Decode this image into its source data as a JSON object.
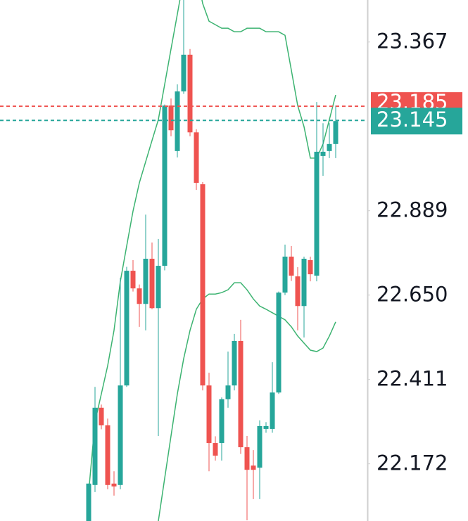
{
  "chart_data": {
    "type": "candlestick",
    "ylim": [
      22.01,
      23.486
    ],
    "yticks": [
      22.172,
      22.411,
      {
        "value": 22.65,
        "label": "22.650"
      },
      22.889,
      23.367
    ],
    "up_color": "#26a69a",
    "down_color": "#ef5350",
    "candles": [
      {
        "open": 22.01,
        "high": 22.116,
        "low": 21.99,
        "close": 22.116
      },
      {
        "open": 22.112,
        "high": 22.39,
        "low": 22.092,
        "close": 22.331
      },
      {
        "open": 22.331,
        "high": 22.34,
        "low": 22.27,
        "close": 22.281
      },
      {
        "open": 22.281,
        "high": 22.3,
        "low": 22.1,
        "close": 22.112
      },
      {
        "open": 22.116,
        "high": 22.151,
        "low": 22.082,
        "close": 22.108
      },
      {
        "open": 22.112,
        "high": 22.699,
        "low": 22.1,
        "close": 22.394
      },
      {
        "open": 22.394,
        "high": 22.73,
        "low": 22.39,
        "close": 22.719
      },
      {
        "open": 22.719,
        "high": 22.749,
        "low": 22.66,
        "close": 22.669
      },
      {
        "open": 22.669,
        "high": 22.68,
        "low": 22.56,
        "close": 22.625
      },
      {
        "open": 22.625,
        "high": 22.878,
        "low": 22.55,
        "close": 22.753
      },
      {
        "open": 22.753,
        "high": 22.799,
        "low": 22.61,
        "close": 22.613
      },
      {
        "open": 22.613,
        "high": 22.809,
        "low": 22.251,
        "close": 22.733
      },
      {
        "open": 22.733,
        "high": 23.19,
        "low": 22.72,
        "close": 23.187
      },
      {
        "open": 23.187,
        "high": 23.207,
        "low": 23.1,
        "close": 23.117
      },
      {
        "open": 23.058,
        "high": 23.247,
        "low": 23.04,
        "close": 23.227
      },
      {
        "open": 23.227,
        "high": 23.5,
        "low": 23.22,
        "close": 23.331
      },
      {
        "open": 23.331,
        "high": 23.347,
        "low": 23.1,
        "close": 23.111
      },
      {
        "open": 23.111,
        "high": 23.12,
        "low": 22.948,
        "close": 22.968
      },
      {
        "open": 22.964,
        "high": 22.97,
        "low": 22.38,
        "close": 22.394
      },
      {
        "open": 22.394,
        "high": 22.43,
        "low": 22.151,
        "close": 22.231
      },
      {
        "open": 22.231,
        "high": 22.25,
        "low": 22.181,
        "close": 22.195
      },
      {
        "open": 22.231,
        "high": 22.36,
        "low": 22.181,
        "close": 22.355
      },
      {
        "open": 22.355,
        "high": 22.49,
        "low": 22.331,
        "close": 22.394
      },
      {
        "open": 22.394,
        "high": 22.54,
        "low": 22.38,
        "close": 22.52
      },
      {
        "open": 22.52,
        "high": 22.58,
        "low": 22.2,
        "close": 22.219
      },
      {
        "open": 22.219,
        "high": 22.251,
        "low": 22.012,
        "close": 22.155
      },
      {
        "open": 22.167,
        "high": 22.211,
        "low": 22.072,
        "close": 22.155
      },
      {
        "open": 22.161,
        "high": 22.295,
        "low": 22.072,
        "close": 22.279
      },
      {
        "open": 22.271,
        "high": 22.29,
        "low": 22.26,
        "close": 22.279
      },
      {
        "open": 22.271,
        "high": 22.46,
        "low": 22.26,
        "close": 22.374
      },
      {
        "open": 22.374,
        "high": 22.66,
        "low": 22.37,
        "close": 22.657
      },
      {
        "open": 22.657,
        "high": 22.793,
        "low": 22.65,
        "close": 22.759
      },
      {
        "open": 22.759,
        "high": 22.789,
        "low": 22.69,
        "close": 22.705
      },
      {
        "open": 22.703,
        "high": 22.729,
        "low": 22.55,
        "close": 22.619
      },
      {
        "open": 22.619,
        "high": 22.759,
        "low": 22.53,
        "close": 22.753
      },
      {
        "open": 22.749,
        "high": 22.759,
        "low": 22.689,
        "close": 22.709
      },
      {
        "open": 22.705,
        "high": 23.197,
        "low": 22.689,
        "close": 23.056
      },
      {
        "open": 23.044,
        "high": 23.137,
        "low": 22.988,
        "close": 23.056
      },
      {
        "open": 23.058,
        "high": 23.137,
        "low": 23.038,
        "close": 23.078
      },
      {
        "open": 23.078,
        "high": 23.187,
        "low": 23.038,
        "close": 23.143
      }
    ],
    "bands": {
      "color": "#3cb371",
      "upper": [
        22.092,
        22.291,
        22.37,
        22.45,
        22.55,
        22.689,
        22.789,
        22.888,
        22.968,
        23.028,
        23.088,
        23.147,
        23.247,
        23.347,
        23.446,
        23.546,
        23.645,
        23.566,
        23.476,
        23.426,
        23.416,
        23.406,
        23.406,
        23.396,
        23.396,
        23.406,
        23.406,
        23.406,
        23.396,
        23.396,
        23.396,
        23.386,
        23.287,
        23.187,
        23.127,
        23.038,
        23.038,
        23.078,
        23.147,
        23.217
      ],
      "lower": [
        null,
        null,
        null,
        null,
        null,
        null,
        null,
        null,
        null,
        null,
        null,
        22.01,
        22.131,
        22.251,
        22.37,
        22.47,
        22.55,
        22.61,
        22.639,
        22.653,
        22.653,
        22.657,
        22.665,
        22.685,
        22.685,
        22.665,
        22.639,
        22.619,
        22.61,
        22.6,
        22.59,
        22.58,
        22.56,
        22.534,
        22.514,
        22.494,
        22.49,
        22.5,
        22.534,
        22.574
      ]
    },
    "price_lines": [
      {
        "value": 23.185,
        "color": "#ef5350"
      },
      {
        "value": 23.145,
        "color": "#26a69a"
      }
    ]
  }
}
